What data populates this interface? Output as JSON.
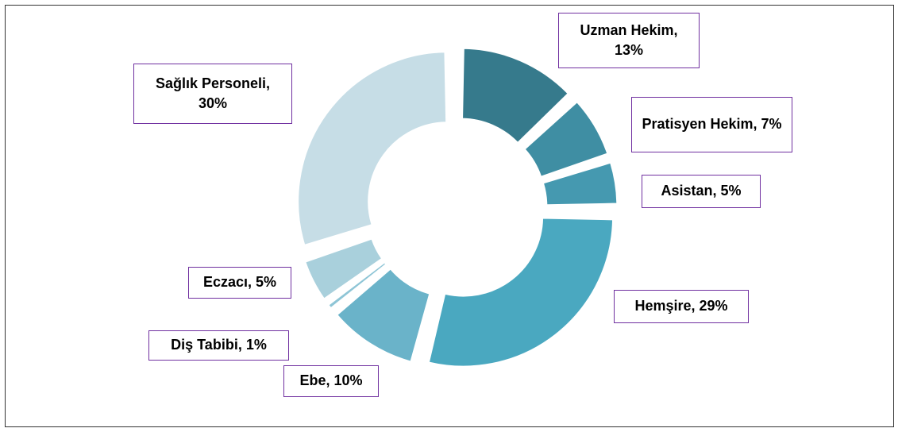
{
  "chart_data": {
    "type": "donut",
    "values": [
      13,
      7,
      5,
      29,
      10,
      1,
      5,
      30
    ],
    "value_labels": [
      "Uzman Hekim, 13%",
      "Pratisyen Hekim, 7%",
      "Asistan, 5%",
      "Hemşire, 29%",
      "Ebe, 10%",
      "Diş Tabibi, 1%",
      "Eczacı, 5%",
      "Sağlık Personeli, 30%"
    ],
    "colors": [
      "#367a8c",
      "#3f8ea3",
      "#4599b0",
      "#4aa8c0",
      "#6ab3c9",
      "#8ec5d6",
      "#a9d0dc",
      "#c6dde6"
    ]
  }
}
